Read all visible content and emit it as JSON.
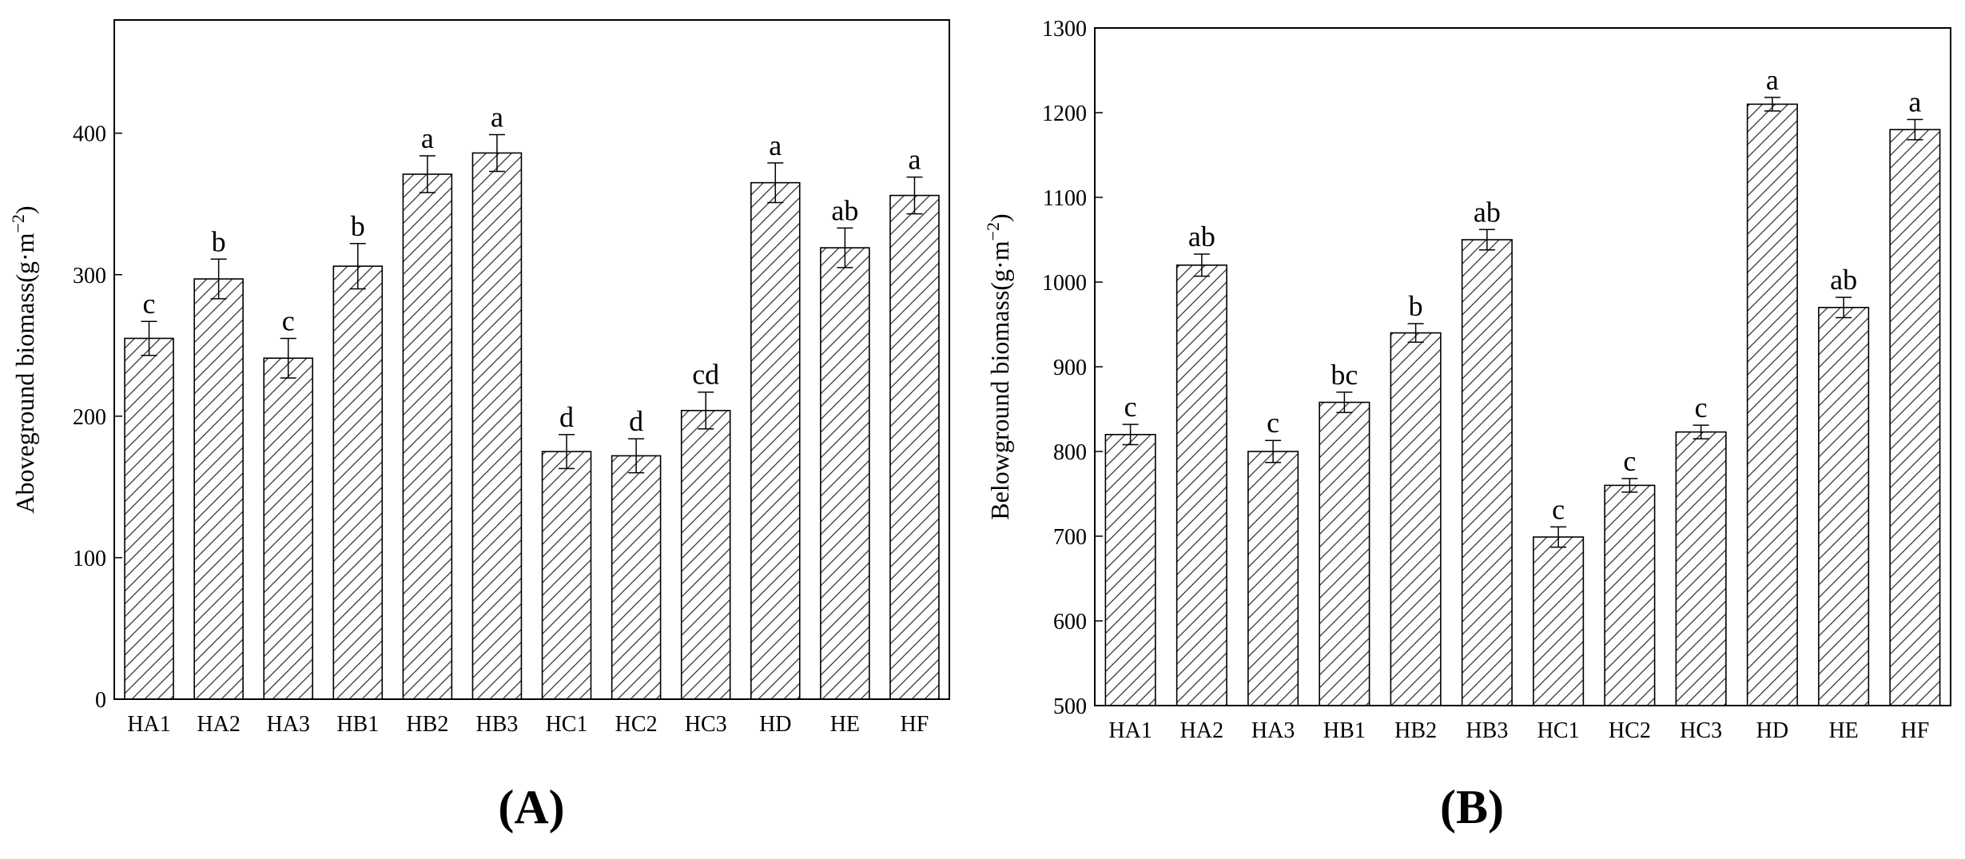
{
  "chart_data": [
    {
      "type": "bar",
      "panel_label": "(A)",
      "ylabel": "Aboveground biomass(g·m",
      "ylabel_sup": "−2",
      "ylabel_close": ")",
      "categories": [
        "HA1",
        "HA2",
        "HA3",
        "HB1",
        "HB2",
        "HB3",
        "HC1",
        "HC2",
        "HC3",
        "HD",
        "HE",
        "HF"
      ],
      "values": [
        255,
        297,
        241,
        306,
        371,
        386,
        175,
        172,
        204,
        365,
        319,
        356
      ],
      "errors": [
        12,
        14,
        14,
        16,
        13,
        13,
        12,
        12,
        13,
        14,
        14,
        13
      ],
      "significance": [
        "c",
        "b",
        "c",
        "b",
        "a",
        "a",
        "d",
        "d",
        "cd",
        "a",
        "ab",
        "a"
      ],
      "ylim": [
        0,
        480
      ],
      "yticks": [
        0,
        100,
        200,
        300,
        400
      ],
      "fill": "hatched",
      "grid": false
    },
    {
      "type": "bar",
      "panel_label": "(B)",
      "ylabel": "Belowground biomass(g·m",
      "ylabel_sup": "−2",
      "ylabel_close": ")",
      "categories": [
        "HA1",
        "HA2",
        "HA3",
        "HB1",
        "HB2",
        "HB3",
        "HC1",
        "HC2",
        "HC3",
        "HD",
        "HE",
        "HF"
      ],
      "values": [
        820,
        1020,
        800,
        858,
        940,
        1050,
        699,
        760,
        823,
        1210,
        970,
        1180
      ],
      "errors": [
        12,
        13,
        13,
        12,
        11,
        12,
        12,
        8,
        8,
        8,
        12,
        12
      ],
      "significance": [
        "c",
        "ab",
        "c",
        "bc",
        "b",
        "ab",
        "c",
        "c",
        "c",
        "a",
        "ab",
        "a"
      ],
      "ylim": [
        500,
        1300
      ],
      "yticks": [
        500,
        600,
        700,
        800,
        900,
        1000,
        1100,
        1200,
        1300
      ],
      "fill": "hatched",
      "grid": false
    }
  ]
}
